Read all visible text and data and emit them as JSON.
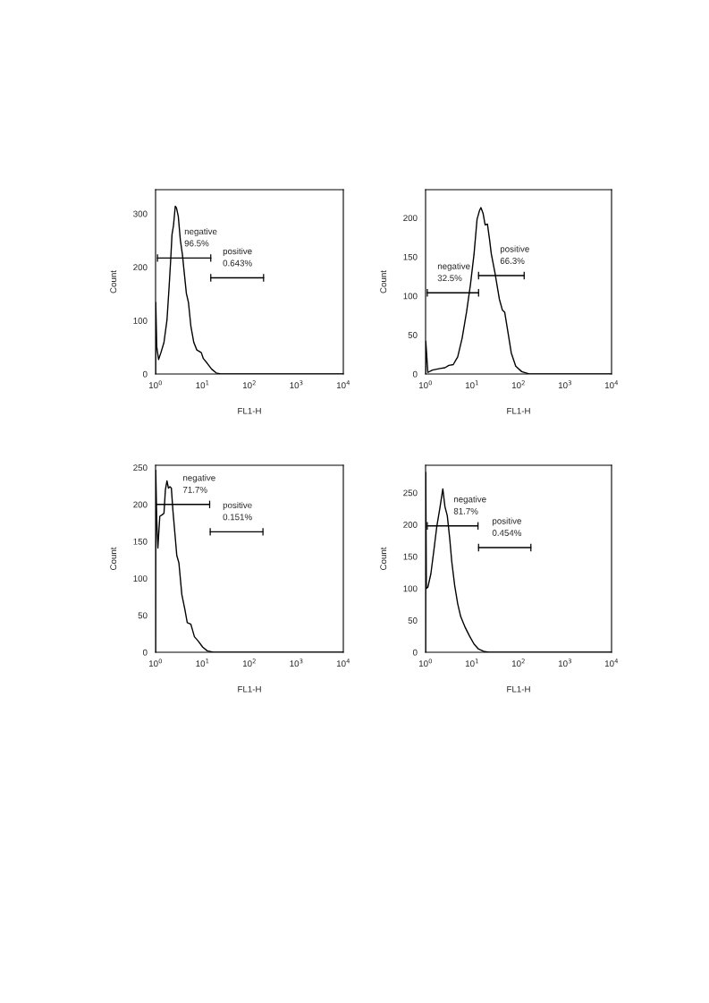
{
  "chart_data": [
    {
      "type": "line",
      "xlabel": "FL1-H",
      "ylabel": "Count",
      "log": "x",
      "grid": false,
      "marker": "none",
      "line_style": "solid",
      "xlim": [
        1,
        10000
      ],
      "xticks": [
        {
          "value": 1,
          "label": "10$^{0}$"
        },
        {
          "value": 10,
          "label": "10$^{1}$"
        },
        {
          "value": 100,
          "label": "10$^{2}$"
        },
        {
          "value": 1000,
          "label": "10$^{3}$"
        },
        {
          "value": 10000,
          "label": "10$^{4}$"
        }
      ],
      "ylim": [
        0,
        345
      ],
      "yticks": [
        0,
        100,
        200,
        300
      ],
      "series": [
        {
          "color": "#000000",
          "x": [
            1.0,
            1.01,
            1.06,
            1.16,
            1.3,
            1.51,
            1.75,
            1.94,
            2.11,
            2.24,
            2.41,
            2.63,
            2.79,
            3.05,
            3.38,
            3.74,
            4.09,
            4.53,
            5.02,
            5.64,
            6.53,
            7.57,
            9.43,
            10.4,
            12.6,
            15.7,
            19.6,
            24.5,
            10000
          ],
          "values": [
            0,
            134,
            51,
            27,
            40,
            59,
            101,
            162,
            217,
            261,
            278,
            314,
            311,
            295,
            250,
            223,
            189,
            151,
            134,
            90,
            59,
            45,
            40,
            29,
            20,
            9,
            2,
            0,
            0
          ]
        },
        {
          "color": "#000000",
          "x": [
            1.1,
            15
          ],
          "values": [
            217,
            217
          ]
        },
        {
          "color": "#000000",
          "x": [
            15,
            200
          ],
          "values": [
            180,
            180
          ]
        }
      ],
      "annotations": [
        {
          "text": "negative\n96.5%",
          "x": 4.1,
          "y": 217
        },
        {
          "text": "positive\n0.643%",
          "x": 27,
          "y": 180
        }
      ]
    },
    {
      "type": "line",
      "xlabel": "FL1-H",
      "ylabel": "Count",
      "log": "x",
      "grid": false,
      "marker": "none",
      "line_style": "solid",
      "xlim": [
        1,
        10000
      ],
      "xticks": [
        {
          "value": 1,
          "label": "10$^{0}$"
        },
        {
          "value": 10,
          "label": "10$^{1}$"
        },
        {
          "value": 100,
          "label": "10$^{2}$"
        },
        {
          "value": 1000,
          "label": "10$^{3}$"
        },
        {
          "value": 10000,
          "label": "10$^{4}$"
        }
      ],
      "ylim": [
        0,
        236
      ],
      "yticks": [
        0,
        50,
        100,
        150,
        200
      ],
      "series": [
        {
          "color": "#000000",
          "x": [
            1.0,
            1.01,
            1.12,
            1.4,
            2.03,
            2.61,
            3.16,
            3.94,
            4.91,
            6.12,
            7.64,
            9.25,
            11.0,
            12.8,
            14.4,
            15.5,
            17.2,
            19.1,
            21.4,
            23.8,
            25.9,
            31.0,
            38.6,
            44.8,
            50.4,
            57.5,
            69.7,
            86.9,
            117,
            169,
            10000
          ],
          "values": [
            0,
            42,
            2,
            5,
            7,
            8,
            11,
            12,
            22,
            46,
            80,
            115,
            153,
            198,
            209,
            213,
            206,
            191,
            192,
            172,
            154,
            130,
            96,
            82,
            79,
            58,
            27,
            10,
            3,
            0,
            0
          ]
        },
        {
          "color": "#000000",
          "x": [
            1.09,
            13.8
          ],
          "values": [
            104,
            104
          ]
        },
        {
          "color": "#000000",
          "x": [
            13.8,
            132
          ],
          "values": [
            126,
            126
          ]
        }
      ],
      "annotations": [
        {
          "text": "negative\n32.5%",
          "x": 1.8,
          "y": 104
        },
        {
          "text": "positive\n66.3%",
          "x": 40,
          "y": 126
        }
      ]
    },
    {
      "type": "line",
      "xlabel": "FL1-H",
      "ylabel": "Count",
      "log": "x",
      "grid": false,
      "marker": "none",
      "line_style": "solid",
      "xlim": [
        1,
        10000
      ],
      "xticks": [
        {
          "value": 1,
          "label": "10$^{0}$"
        },
        {
          "value": 10,
          "label": "10$^{1}$"
        },
        {
          "value": 100,
          "label": "10$^{2}$"
        },
        {
          "value": 1000,
          "label": "10$^{3}$"
        },
        {
          "value": 10000,
          "label": "10$^{4}$"
        }
      ],
      "ylim": [
        0,
        253
      ],
      "yticks": [
        0,
        50,
        100,
        150,
        200,
        250
      ],
      "series": [
        {
          "color": "#000000",
          "x": [
            1.0,
            1.01,
            1.06,
            1.12,
            1.23,
            1.38,
            1.51,
            1.62,
            1.75,
            1.88,
            2.02,
            2.17,
            2.34,
            2.63,
            2.83,
            3.14,
            3.63,
            4.21,
            4.73,
            5.64,
            6.73,
            8.13,
            10.1,
            12.6,
            16.9,
            10000
          ],
          "values": [
            0,
            246,
            179,
            141,
            184,
            186,
            188,
            220,
            232,
            222,
            224,
            222,
            192,
            155,
            131,
            121,
            78,
            58,
            40,
            38,
            21,
            15,
            7,
            2,
            0,
            0
          ]
        },
        {
          "color": "#000000",
          "x": [
            1.0,
            14.2
          ],
          "values": [
            200,
            200
          ]
        },
        {
          "color": "#000000",
          "x": [
            14.6,
            194
          ],
          "values": [
            163,
            163
          ]
        }
      ],
      "annotations": [
        {
          "text": "negative\n71.7%",
          "x": 3.8,
          "y": 200
        },
        {
          "text": "positive\n0.151%",
          "x": 27,
          "y": 163
        }
      ]
    },
    {
      "type": "line",
      "xlabel": "FL1-H",
      "ylabel": "Count",
      "log": "x",
      "grid": false,
      "marker": "none",
      "line_style": "solid",
      "xlim": [
        1,
        10000
      ],
      "xticks": [
        {
          "value": 1,
          "label": "10$^{0}$"
        },
        {
          "value": 10,
          "label": "10$^{1}$"
        },
        {
          "value": 100,
          "label": "10$^{2}$"
        },
        {
          "value": 1000,
          "label": "10$^{3}$"
        },
        {
          "value": 10000,
          "label": "10$^{4}$"
        }
      ],
      "ylim": [
        0,
        293
      ],
      "yticks": [
        0,
        50,
        100,
        150,
        200,
        250
      ],
      "series": [
        {
          "color": "#000000",
          "x": [
            1.0,
            1.01,
            1.04,
            1.12,
            1.3,
            1.51,
            1.75,
            2.03,
            2.35,
            2.61,
            2.93,
            3.3,
            3.66,
            4.24,
            4.91,
            5.69,
            7.1,
            8.87,
            11.0,
            13.8,
            18.5,
            23.0,
            10000
          ],
          "values": [
            0,
            282,
            100,
            102,
            123,
            160,
            198,
            226,
            256,
            228,
            214,
            179,
            142,
            104,
            76,
            56,
            39,
            25,
            13,
            5,
            1,
            0,
            0
          ]
        },
        {
          "color": "#000000",
          "x": [
            1.09,
            13.4
          ],
          "values": [
            198,
            198
          ]
        },
        {
          "color": "#000000",
          "x": [
            13.8,
            184
          ],
          "values": [
            164,
            164
          ]
        }
      ],
      "annotations": [
        {
          "text": "negative\n81.7%",
          "x": 4.0,
          "y": 198
        },
        {
          "text": "positive\n0.454%",
          "x": 27,
          "y": 164
        }
      ]
    }
  ]
}
